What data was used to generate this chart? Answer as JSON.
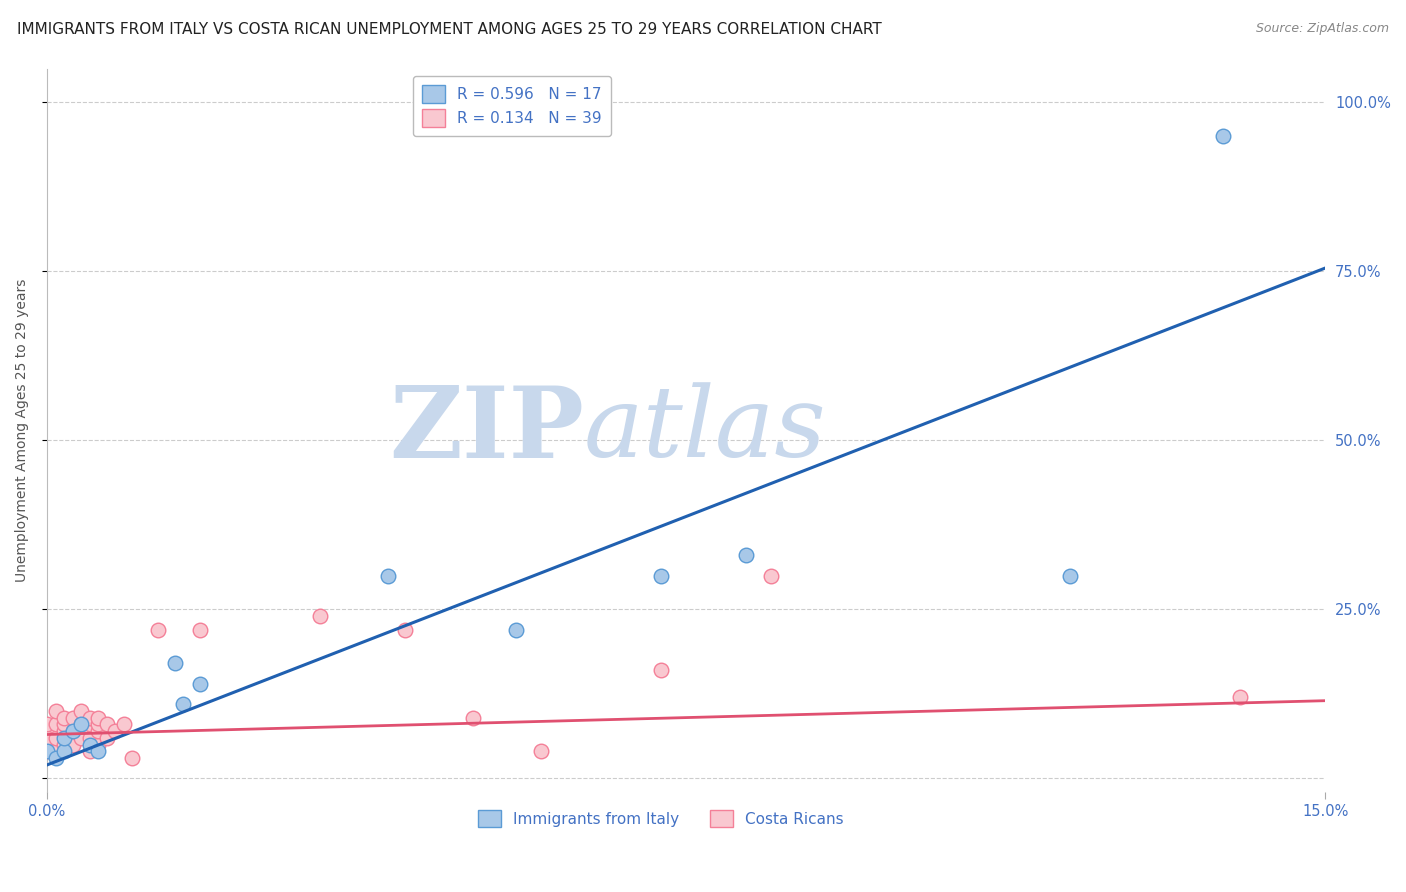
{
  "title": "IMMIGRANTS FROM ITALY VS COSTA RICAN UNEMPLOYMENT AMONG AGES 25 TO 29 YEARS CORRELATION CHART",
  "source": "Source: ZipAtlas.com",
  "ylabel": "Unemployment Among Ages 25 to 29 years",
  "xlim": [
    0.0,
    0.15
  ],
  "ylim": [
    -0.02,
    1.05
  ],
  "yticks": [
    0.0,
    0.25,
    0.5,
    0.75,
    1.0
  ],
  "ytick_labels": [
    "",
    "25.0%",
    "50.0%",
    "75.0%",
    "100.0%"
  ],
  "xticks": [
    0.0,
    0.15
  ],
  "xtick_labels": [
    "0.0%",
    "15.0%"
  ],
  "legend_blue_label": "R = 0.596   N = 17",
  "legend_pink_label": "R = 0.134   N = 39",
  "legend_bottom_blue": "Immigrants from Italy",
  "legend_bottom_pink": "Costa Ricans",
  "blue_fill_color": "#a8c8e8",
  "blue_edge_color": "#5b9bd5",
  "pink_fill_color": "#f9c8d0",
  "pink_edge_color": "#f48098",
  "blue_line_color": "#2060b0",
  "pink_line_color": "#e05070",
  "watermark_zip_color": "#c8d8ec",
  "watermark_atlas_color": "#c8d8ec",
  "background_color": "#ffffff",
  "grid_color": "#cccccc",
  "title_color": "#222222",
  "tick_color": "#4472c4",
  "source_color": "#888888",
  "ylabel_color": "#555555",
  "title_fontsize": 11,
  "axis_label_fontsize": 10,
  "tick_fontsize": 10.5,
  "scatter_size": 110,
  "blue_scatter_x": [
    0.0,
    0.001,
    0.002,
    0.002,
    0.003,
    0.004,
    0.005,
    0.006,
    0.015,
    0.016,
    0.018,
    0.04,
    0.055,
    0.072,
    0.082,
    0.12,
    0.138
  ],
  "blue_scatter_y": [
    0.04,
    0.03,
    0.04,
    0.06,
    0.07,
    0.08,
    0.05,
    0.04,
    0.17,
    0.11,
    0.14,
    0.3,
    0.22,
    0.3,
    0.33,
    0.3,
    0.95
  ],
  "pink_scatter_x": [
    0.0,
    0.0,
    0.0,
    0.001,
    0.001,
    0.001,
    0.001,
    0.002,
    0.002,
    0.002,
    0.002,
    0.003,
    0.003,
    0.003,
    0.004,
    0.004,
    0.004,
    0.005,
    0.005,
    0.005,
    0.005,
    0.006,
    0.006,
    0.006,
    0.006,
    0.007,
    0.007,
    0.008,
    0.009,
    0.01,
    0.013,
    0.018,
    0.032,
    0.042,
    0.05,
    0.058,
    0.072,
    0.085,
    0.14
  ],
  "pink_scatter_y": [
    0.04,
    0.06,
    0.08,
    0.04,
    0.06,
    0.08,
    0.1,
    0.05,
    0.07,
    0.08,
    0.09,
    0.05,
    0.07,
    0.09,
    0.06,
    0.08,
    0.1,
    0.04,
    0.06,
    0.08,
    0.09,
    0.05,
    0.07,
    0.08,
    0.09,
    0.06,
    0.08,
    0.07,
    0.08,
    0.03,
    0.22,
    0.22,
    0.24,
    0.22,
    0.09,
    0.04,
    0.16,
    0.3,
    0.12
  ],
  "blue_line_x": [
    0.0,
    0.15
  ],
  "blue_line_y": [
    0.02,
    0.755
  ],
  "pink_line_x": [
    0.0,
    0.15
  ],
  "pink_line_y": [
    0.065,
    0.115
  ]
}
